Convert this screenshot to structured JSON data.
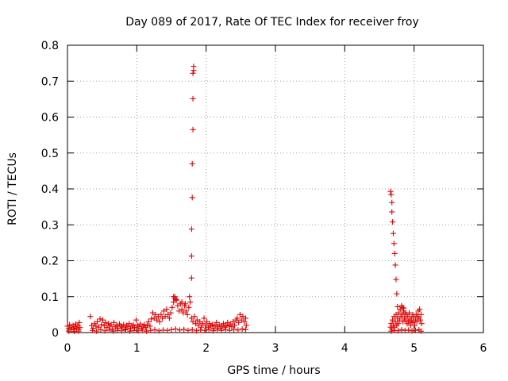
{
  "chart_data": {
    "type": "scatter",
    "title": "Day 089 of 2017, Rate Of TEC Index for receiver froy",
    "xlabel": "GPS time / hours",
    "ylabel": "ROTI / TECUs",
    "xlim": [
      0,
      6
    ],
    "ylim": [
      0,
      0.8
    ],
    "x_ticks": [
      "0",
      "1",
      "2",
      "3",
      "4",
      "5",
      "6"
    ],
    "y_ticks": [
      "0",
      "0.1",
      "0.2",
      "0.3",
      "0.4",
      "0.5",
      "0.6",
      "0.7",
      "0.8"
    ],
    "grid": true,
    "marker": "+",
    "color": "#e00000",
    "points": [
      [
        0.0,
        0.018
      ],
      [
        0.02,
        0.012
      ],
      [
        0.03,
        0.022
      ],
      [
        0.05,
        0.008
      ],
      [
        0.06,
        0.015
      ],
      [
        0.08,
        0.02
      ],
      [
        0.09,
        0.01
      ],
      [
        0.11,
        0.016
      ],
      [
        0.12,
        0.024
      ],
      [
        0.13,
        0.012
      ],
      [
        0.15,
        0.019
      ],
      [
        0.16,
        0.008
      ],
      [
        0.17,
        0.028
      ],
      [
        0.18,
        0.014
      ],
      [
        0.02,
        0.004
      ],
      [
        0.1,
        0.003
      ],
      [
        0.16,
        0.004
      ],
      [
        0.33,
        0.045
      ],
      [
        0.35,
        0.02
      ],
      [
        0.37,
        0.012
      ],
      [
        0.39,
        0.025
      ],
      [
        0.41,
        0.018
      ],
      [
        0.43,
        0.03
      ],
      [
        0.45,
        0.015
      ],
      [
        0.47,
        0.038
      ],
      [
        0.49,
        0.022
      ],
      [
        0.51,
        0.035
      ],
      [
        0.53,
        0.02
      ],
      [
        0.55,
        0.028
      ],
      [
        0.57,
        0.014
      ],
      [
        0.59,
        0.025
      ],
      [
        0.61,
        0.018
      ],
      [
        0.63,
        0.022
      ],
      [
        0.65,
        0.01
      ],
      [
        0.67,
        0.028
      ],
      [
        0.69,
        0.016
      ],
      [
        0.71,
        0.02
      ],
      [
        0.73,
        0.012
      ],
      [
        0.75,
        0.024
      ],
      [
        0.77,
        0.018
      ],
      [
        0.79,
        0.015
      ],
      [
        0.81,
        0.022
      ],
      [
        0.83,
        0.01
      ],
      [
        0.85,
        0.02
      ],
      [
        0.87,
        0.016
      ],
      [
        0.89,
        0.025
      ],
      [
        0.91,
        0.012
      ],
      [
        0.93,
        0.018
      ],
      [
        0.95,
        0.022
      ],
      [
        0.97,
        0.014
      ],
      [
        0.99,
        0.035
      ],
      [
        1.01,
        0.02
      ],
      [
        1.03,
        0.016
      ],
      [
        1.05,
        0.024
      ],
      [
        1.07,
        0.012
      ],
      [
        1.09,
        0.018
      ],
      [
        1.11,
        0.022
      ],
      [
        1.13,
        0.014
      ],
      [
        1.15,
        0.02
      ],
      [
        1.17,
        0.03
      ],
      [
        1.19,
        0.018
      ],
      [
        1.21,
        0.038
      ],
      [
        1.23,
        0.055
      ],
      [
        1.25,
        0.04
      ],
      [
        1.27,
        0.05
      ],
      [
        1.29,
        0.035
      ],
      [
        1.31,
        0.045
      ],
      [
        1.33,
        0.03
      ],
      [
        1.35,
        0.05
      ],
      [
        1.37,
        0.04
      ],
      [
        1.39,
        0.06
      ],
      [
        1.41,
        0.045
      ],
      [
        1.43,
        0.065
      ],
      [
        1.45,
        0.05
      ],
      [
        1.47,
        0.04
      ],
      [
        1.49,
        0.055
      ],
      [
        1.51,
        0.07
      ],
      [
        1.53,
        0.085
      ],
      [
        1.55,
        0.1
      ],
      [
        1.57,
        0.09
      ],
      [
        1.59,
        0.075
      ],
      [
        1.61,
        0.06
      ],
      [
        1.63,
        0.08
      ],
      [
        1.65,
        0.065
      ],
      [
        1.67,
        0.055
      ],
      [
        1.69,
        0.075
      ],
      [
        1.71,
        0.06
      ],
      [
        1.73,
        0.05
      ],
      [
        1.75,
        0.07
      ],
      [
        1.77,
        0.085
      ],
      [
        1.79,
        0.04
      ],
      [
        1.81,
        0.03
      ],
      [
        1.83,
        0.045
      ],
      [
        1.85,
        0.025
      ],
      [
        1.87,
        0.035
      ],
      [
        1.89,
        0.02
      ],
      [
        1.91,
        0.03
      ],
      [
        1.93,
        0.015
      ],
      [
        1.95,
        0.025
      ],
      [
        1.97,
        0.04
      ],
      [
        1.99,
        0.02
      ],
      [
        2.01,
        0.03
      ],
      [
        2.03,
        0.015
      ],
      [
        2.05,
        0.025
      ],
      [
        2.07,
        0.018
      ],
      [
        2.09,
        0.022
      ],
      [
        2.11,
        0.012
      ],
      [
        2.13,
        0.02
      ],
      [
        2.15,
        0.028
      ],
      [
        2.17,
        0.016
      ],
      [
        2.19,
        0.022
      ],
      [
        2.21,
        0.012
      ],
      [
        2.23,
        0.018
      ],
      [
        2.25,
        0.025
      ],
      [
        2.27,
        0.015
      ],
      [
        2.29,
        0.02
      ],
      [
        2.31,
        0.028
      ],
      [
        2.33,
        0.018
      ],
      [
        2.35,
        0.024
      ],
      [
        2.37,
        0.016
      ],
      [
        2.39,
        0.03
      ],
      [
        2.41,
        0.02
      ],
      [
        2.43,
        0.035
      ],
      [
        2.45,
        0.04
      ],
      [
        2.47,
        0.028
      ],
      [
        2.49,
        0.05
      ],
      [
        2.51,
        0.035
      ],
      [
        2.53,
        0.045
      ],
      [
        2.55,
        0.03
      ],
      [
        2.57,
        0.04
      ],
      [
        2.58,
        0.02
      ],
      [
        0.36,
        0.006
      ],
      [
        0.42,
        0.004
      ],
      [
        0.48,
        0.008
      ],
      [
        0.54,
        0.005
      ],
      [
        0.6,
        0.007
      ],
      [
        0.66,
        0.004
      ],
      [
        0.72,
        0.006
      ],
      [
        0.78,
        0.005
      ],
      [
        0.84,
        0.008
      ],
      [
        0.9,
        0.004
      ],
      [
        0.96,
        0.006
      ],
      [
        1.02,
        0.005
      ],
      [
        1.08,
        0.007
      ],
      [
        1.14,
        0.004
      ],
      [
        1.2,
        0.006
      ],
      [
        1.26,
        0.008
      ],
      [
        1.32,
        0.005
      ],
      [
        1.38,
        0.007
      ],
      [
        1.44,
        0.006
      ],
      [
        1.5,
        0.008
      ],
      [
        1.56,
        0.01
      ],
      [
        1.62,
        0.007
      ],
      [
        1.68,
        0.009
      ],
      [
        1.74,
        0.006
      ],
      [
        1.8,
        0.008
      ],
      [
        1.86,
        0.005
      ],
      [
        1.92,
        0.007
      ],
      [
        1.98,
        0.006
      ],
      [
        2.04,
        0.008
      ],
      [
        2.1,
        0.005
      ],
      [
        2.16,
        0.007
      ],
      [
        2.22,
        0.006
      ],
      [
        2.28,
        0.008
      ],
      [
        2.34,
        0.006
      ],
      [
        2.4,
        0.009
      ],
      [
        2.46,
        0.007
      ],
      [
        2.52,
        0.01
      ],
      [
        2.57,
        0.008
      ],
      [
        1.53,
        0.1
      ],
      [
        1.55,
        0.095
      ],
      [
        1.57,
        0.092
      ],
      [
        1.65,
        0.085
      ],
      [
        1.7,
        0.08
      ],
      [
        1.76,
        0.1
      ],
      [
        1.79,
        0.152
      ],
      [
        1.79,
        0.213
      ],
      [
        1.79,
        0.288
      ],
      [
        1.8,
        0.376
      ],
      [
        1.8,
        0.47
      ],
      [
        1.81,
        0.565
      ],
      [
        1.81,
        0.651
      ],
      [
        1.81,
        0.722
      ],
      [
        1.82,
        0.73
      ],
      [
        1.82,
        0.741
      ],
      [
        4.66,
        0.393
      ],
      [
        4.67,
        0.384
      ],
      [
        4.68,
        0.362
      ],
      [
        4.68,
        0.336
      ],
      [
        4.69,
        0.308
      ],
      [
        4.7,
        0.276
      ],
      [
        4.71,
        0.248
      ],
      [
        4.72,
        0.22
      ],
      [
        4.73,
        0.188
      ],
      [
        4.74,
        0.148
      ],
      [
        4.75,
        0.108
      ],
      [
        4.76,
        0.072
      ],
      [
        4.66,
        0.015
      ],
      [
        4.67,
        0.025
      ],
      [
        4.68,
        0.01
      ],
      [
        4.69,
        0.035
      ],
      [
        4.7,
        0.02
      ],
      [
        4.71,
        0.045
      ],
      [
        4.72,
        0.015
      ],
      [
        4.73,
        0.03
      ],
      [
        4.74,
        0.05
      ],
      [
        4.75,
        0.02
      ],
      [
        4.76,
        0.04
      ],
      [
        4.77,
        0.025
      ],
      [
        4.78,
        0.055
      ],
      [
        4.79,
        0.035
      ],
      [
        4.8,
        0.065
      ],
      [
        4.81,
        0.045
      ],
      [
        4.82,
        0.075
      ],
      [
        4.83,
        0.05
      ],
      [
        4.84,
        0.03
      ],
      [
        4.85,
        0.06
      ],
      [
        4.86,
        0.04
      ],
      [
        4.87,
        0.055
      ],
      [
        4.88,
        0.035
      ],
      [
        4.89,
        0.05
      ],
      [
        4.9,
        0.025
      ],
      [
        4.91,
        0.045
      ],
      [
        4.92,
        0.03
      ],
      [
        4.93,
        0.055
      ],
      [
        4.94,
        0.035
      ],
      [
        4.95,
        0.02
      ],
      [
        4.96,
        0.04
      ],
      [
        4.97,
        0.028
      ],
      [
        4.98,
        0.05
      ],
      [
        4.99,
        0.03
      ],
      [
        5.0,
        0.045
      ],
      [
        5.01,
        0.02
      ],
      [
        5.02,
        0.035
      ],
      [
        5.03,
        0.05
      ],
      [
        5.04,
        0.03
      ],
      [
        5.05,
        0.045
      ],
      [
        5.06,
        0.06
      ],
      [
        5.07,
        0.04
      ],
      [
        5.08,
        0.065
      ],
      [
        5.09,
        0.035
      ],
      [
        5.1,
        0.05
      ],
      [
        5.11,
        0.025
      ],
      [
        4.67,
        0.004
      ],
      [
        4.72,
        0.006
      ],
      [
        4.77,
        0.005
      ],
      [
        4.82,
        0.008
      ],
      [
        4.87,
        0.006
      ],
      [
        4.92,
        0.007
      ],
      [
        4.97,
        0.005
      ],
      [
        5.02,
        0.006
      ],
      [
        5.07,
        0.008
      ],
      [
        5.1,
        0.004
      ],
      [
        4.83,
        0.07
      ],
      [
        4.85,
        0.068
      ]
    ]
  }
}
